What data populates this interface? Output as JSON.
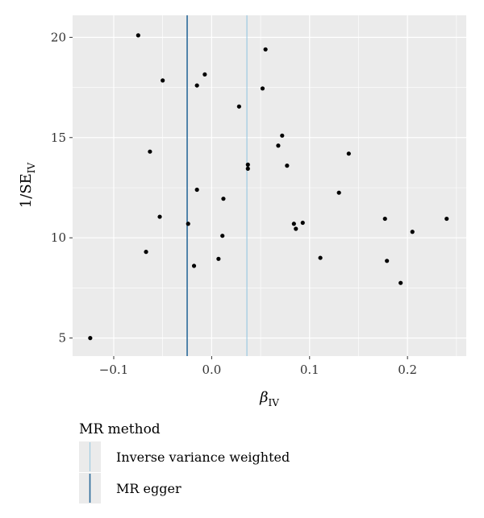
{
  "chart_data": {
    "type": "scatter",
    "xlabel": "β",
    "xlabel_sub": "IV",
    "ylabel": "1/SE",
    "ylabel_sub": "IV",
    "xlim": [
      -0.142,
      0.26
    ],
    "ylim": [
      4.1,
      21.1
    ],
    "x_ticks": [
      -0.1,
      0.0,
      0.1,
      0.2
    ],
    "x_tick_labels": [
      "−0.1",
      "0.0",
      "0.1",
      "0.2"
    ],
    "y_ticks": [
      5,
      10,
      15,
      20
    ],
    "y_tick_labels": [
      "5",
      "10",
      "15",
      "20"
    ],
    "grid": true,
    "points": [
      {
        "x": -0.124,
        "y": 5.0
      },
      {
        "x": -0.075,
        "y": 20.1
      },
      {
        "x": -0.067,
        "y": 9.3
      },
      {
        "x": -0.063,
        "y": 14.3
      },
      {
        "x": -0.053,
        "y": 11.05
      },
      {
        "x": -0.05,
        "y": 17.85
      },
      {
        "x": -0.024,
        "y": 10.7
      },
      {
        "x": -0.018,
        "y": 8.6
      },
      {
        "x": -0.015,
        "y": 12.4
      },
      {
        "x": -0.015,
        "y": 17.6
      },
      {
        "x": -0.007,
        "y": 18.15
      },
      {
        "x": 0.007,
        "y": 8.95
      },
      {
        "x": 0.011,
        "y": 10.1
      },
      {
        "x": 0.012,
        "y": 11.95
      },
      {
        "x": 0.028,
        "y": 16.55
      },
      {
        "x": 0.037,
        "y": 13.65
      },
      {
        "x": 0.037,
        "y": 13.45
      },
      {
        "x": 0.052,
        "y": 17.45
      },
      {
        "x": 0.055,
        "y": 19.4
      },
      {
        "x": 0.068,
        "y": 14.6
      },
      {
        "x": 0.072,
        "y": 15.1
      },
      {
        "x": 0.077,
        "y": 13.6
      },
      {
        "x": 0.084,
        "y": 10.7
      },
      {
        "x": 0.086,
        "y": 10.45
      },
      {
        "x": 0.093,
        "y": 10.75
      },
      {
        "x": 0.111,
        "y": 9.0
      },
      {
        "x": 0.13,
        "y": 12.25
      },
      {
        "x": 0.14,
        "y": 14.2
      },
      {
        "x": 0.177,
        "y": 10.95
      },
      {
        "x": 0.179,
        "y": 8.85
      },
      {
        "x": 0.193,
        "y": 7.75
      },
      {
        "x": 0.205,
        "y": 10.3
      },
      {
        "x": 0.24,
        "y": 10.95
      }
    ],
    "vlines": [
      {
        "name": "Inverse variance weighted",
        "x": 0.036,
        "color": "#9ecae1"
      },
      {
        "name": "MR egger",
        "x": -0.025,
        "color": "#2b6a9a"
      }
    ],
    "legend": {
      "title": "MR method",
      "position": "bottom-left",
      "entries": [
        "Inverse variance weighted",
        "MR egger"
      ]
    },
    "colors": {
      "panel": "#ebebeb",
      "grid": "#ffffff",
      "points": "#000000"
    }
  }
}
